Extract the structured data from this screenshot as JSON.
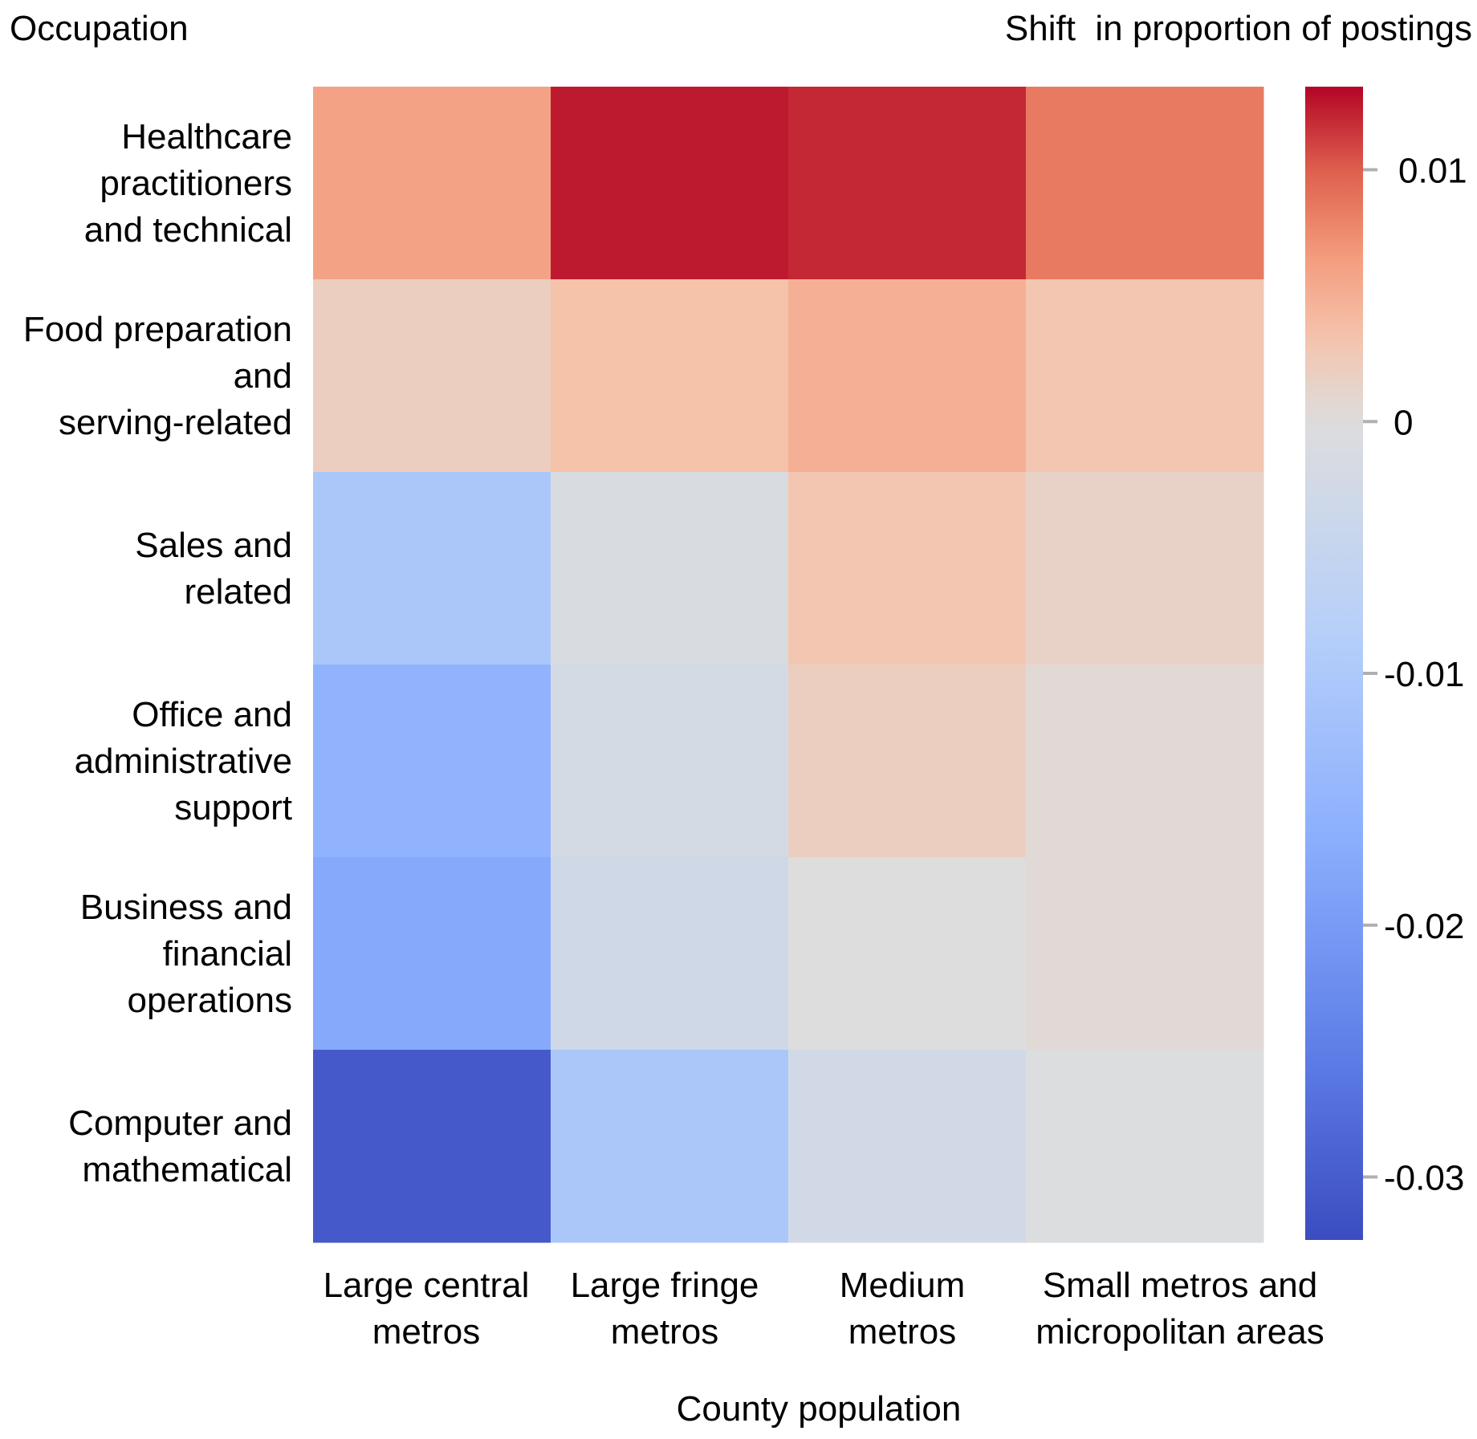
{
  "chart_data": {
    "type": "heatmap",
    "title": "",
    "ylabel": "Occupation",
    "xlabel": "County population",
    "colorbar_label": "Shift  in proportion of postings",
    "rows": [
      [
        "Healthcare",
        "practitioners",
        "and technical"
      ],
      [
        "Food preparation",
        "and",
        "serving-related"
      ],
      [
        "Sales and",
        "related"
      ],
      [
        "Office and",
        "administrative",
        "support"
      ],
      [
        "Business and",
        "financial",
        "operations"
      ],
      [
        "Computer and",
        "mathematical"
      ]
    ],
    "columns": [
      [
        "Large central",
        "metros"
      ],
      [
        "Large fringe",
        "metros"
      ],
      [
        "Medium",
        "metros"
      ],
      [
        "Small metros and",
        "micropolitan areas"
      ]
    ],
    "values": [
      [
        0.006,
        0.0125,
        0.012,
        0.0085
      ],
      [
        0.002,
        0.0035,
        0.005,
        0.003
      ],
      [
        -0.0105,
        -0.001,
        0.003,
        0.0015
      ],
      [
        -0.0155,
        -0.002,
        0.002,
        0.0005
      ],
      [
        -0.0175,
        -0.003,
        0.0,
        0.0005
      ],
      [
        -0.0305,
        -0.0105,
        -0.0025,
        -0.0002
      ]
    ],
    "colormap": "coolwarm",
    "color_range": [
      -0.0325,
      0.0133
    ],
    "colorbar_ticks": [
      {
        "value": 0.01,
        "label": "0.01"
      },
      {
        "value": 0.0,
        "label": "0"
      },
      {
        "value": -0.01,
        "label": "-0.01"
      },
      {
        "value": -0.02,
        "label": "-0.02"
      },
      {
        "value": -0.03,
        "label": "-0.03"
      }
    ],
    "colors": {
      "low": "#3b4cc0",
      "mid": "#dddddd",
      "high": "#b40426",
      "tick": "#b0b0b0"
    }
  }
}
